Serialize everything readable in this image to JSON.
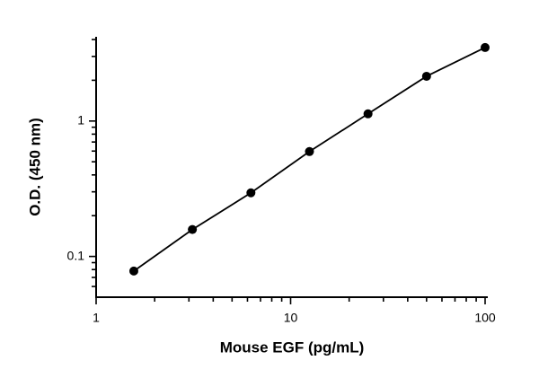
{
  "chart_data": {
    "type": "scatter",
    "x_label": "Mouse EGF (pg/mL)",
    "y_label": "O.D. (450 nm)",
    "x": [
      1.5625,
      3.125,
      6.25,
      12.5,
      25,
      50,
      100
    ],
    "series": [
      {
        "values": [
          0.078,
          0.158,
          0.295,
          0.595,
          1.13,
          2.14,
          3.49
        ],
        "color": "#000000"
      }
    ],
    "xscale": "log",
    "yscale": "log",
    "xlim": [
      1,
      100
    ],
    "ylim": [
      0.05,
      4
    ],
    "xticks": [
      1,
      10,
      100
    ],
    "yticks": [
      0.1,
      1
    ],
    "xminorticks": [
      2,
      3,
      4,
      5,
      6,
      7,
      8,
      9,
      20,
      30,
      40,
      50,
      60,
      70,
      80,
      90
    ],
    "yminorticks": [
      0.06,
      0.07,
      0.08,
      0.09,
      0.2,
      0.3,
      0.4,
      0.5,
      0.6,
      0.7,
      0.8,
      0.9,
      2,
      3,
      4
    ],
    "connect": true,
    "grid": false
  }
}
